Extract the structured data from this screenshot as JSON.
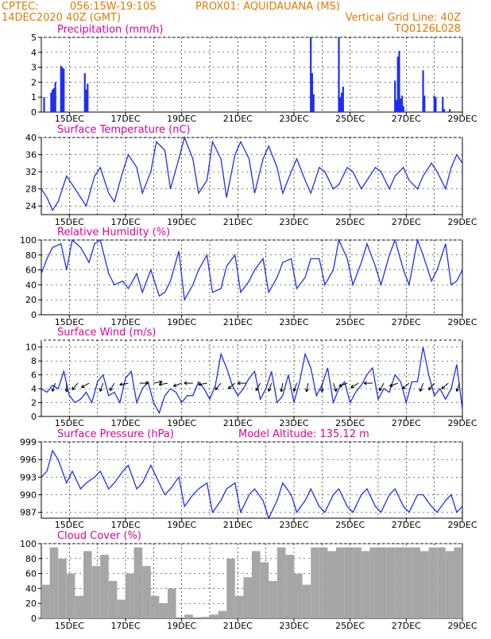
{
  "header": {
    "line1_left": "CPTEC:",
    "coords": "056:15W-19:10S",
    "location": "PROX01: AQUIDAUANA (MS)",
    "date": "14DEC2020 40Z (GMT)",
    "grid_note": "Vertical Grid Line: 40Z",
    "model": "TQ0126L028"
  },
  "colors": {
    "header": "#e07a00",
    "title": "#e0009a",
    "line": "#1f2ff0",
    "bar": "#1f2ff0",
    "cloud": "#a6a6a6",
    "arrow": "#000000"
  },
  "x_ticks": [
    "15DEC",
    "17DEC",
    "19DEC",
    "21DEC",
    "23DEC",
    "25DEC",
    "27DEC",
    "29DEC"
  ],
  "chart_data": [
    {
      "id": "precip",
      "type": "bar",
      "title": "Precipitation (mm/h)",
      "ylim": [
        0,
        5
      ],
      "yticks": [
        "0",
        "1",
        "2",
        "3",
        "4",
        "5"
      ],
      "x": [
        14.1,
        14.35,
        14.4,
        14.45,
        14.5,
        14.7,
        14.75,
        14.8,
        15.55,
        15.6,
        15.65,
        23.6,
        23.65,
        23.7,
        24.6,
        24.65,
        24.7,
        24.75,
        26.6,
        26.65,
        26.7,
        26.75,
        26.8,
        26.85,
        26.9,
        27.6,
        27.65,
        28.0,
        28.05,
        28.3,
        28.35,
        28.55
      ],
      "values": [
        1.0,
        1.3,
        1.5,
        1.6,
        2.0,
        3.1,
        3.0,
        2.9,
        2.6,
        1.5,
        1.9,
        5.0,
        2.6,
        1.2,
        5.0,
        1.0,
        1.3,
        1.7,
        2.1,
        0.8,
        3.7,
        4.1,
        0.9,
        1.1,
        0.4,
        2.8,
        1.1,
        1.1,
        1.0,
        1.0,
        0.2,
        0.2
      ]
    },
    {
      "id": "temp",
      "type": "line",
      "title": "Surface Temperature (nC)",
      "ylim": [
        22,
        40
      ],
      "yticks": [
        "24",
        "28",
        "32",
        "36",
        "40"
      ],
      "x": [
        14.0,
        14.2,
        14.4,
        14.6,
        14.9,
        15.1,
        15.4,
        15.6,
        15.9,
        16.1,
        16.4,
        16.6,
        16.9,
        17.1,
        17.4,
        17.6,
        17.9,
        18.1,
        18.4,
        18.6,
        18.9,
        19.1,
        19.4,
        19.6,
        19.9,
        20.1,
        20.4,
        20.6,
        20.9,
        21.1,
        21.4,
        21.6,
        21.9,
        22.1,
        22.4,
        22.6,
        22.9,
        23.1,
        23.4,
        23.6,
        23.9,
        24.1,
        24.4,
        24.6,
        24.9,
        25.1,
        25.4,
        25.6,
        25.9,
        26.1,
        26.4,
        26.6,
        26.9,
        27.1,
        27.4,
        27.6,
        27.9,
        28.1,
        28.4,
        28.6,
        28.8,
        29.0
      ],
      "values": [
        28,
        26,
        23,
        25,
        31,
        29,
        26,
        24,
        31,
        33,
        27,
        25,
        32,
        36,
        33,
        27,
        32,
        39,
        37,
        28,
        35,
        40,
        35,
        27,
        30,
        39,
        35,
        26,
        36,
        39,
        35,
        27,
        35,
        38,
        33,
        27,
        32,
        35,
        30,
        27,
        33,
        32,
        28,
        29,
        33,
        32,
        28,
        30,
        33,
        32,
        28,
        31,
        33,
        30,
        28,
        31,
        34,
        32,
        28,
        33,
        36,
        34
      ]
    },
    {
      "id": "rh",
      "type": "line",
      "title": "Relative Humidity (%)",
      "ylim": [
        0,
        100
      ],
      "yticks": [
        "0",
        "20",
        "40",
        "60",
        "80",
        "100"
      ],
      "x": [
        14.0,
        14.2,
        14.4,
        14.7,
        14.9,
        15.1,
        15.4,
        15.7,
        15.9,
        16.1,
        16.4,
        16.6,
        16.9,
        17.1,
        17.4,
        17.6,
        17.9,
        18.2,
        18.4,
        18.6,
        18.9,
        19.1,
        19.4,
        19.6,
        19.9,
        20.1,
        20.4,
        20.6,
        20.9,
        21.1,
        21.4,
        21.6,
        21.9,
        22.1,
        22.4,
        22.6,
        22.9,
        23.1,
        23.4,
        23.6,
        23.9,
        24.1,
        24.4,
        24.6,
        24.9,
        25.1,
        25.4,
        25.6,
        25.9,
        26.1,
        26.4,
        26.6,
        26.9,
        27.1,
        27.4,
        27.6,
        27.9,
        28.1,
        28.4,
        28.6,
        28.8,
        29.0
      ],
      "values": [
        55,
        75,
        90,
        95,
        60,
        100,
        90,
        70,
        95,
        100,
        55,
        40,
        45,
        35,
        55,
        30,
        60,
        25,
        30,
        45,
        85,
        20,
        40,
        60,
        80,
        30,
        35,
        65,
        80,
        30,
        45,
        60,
        75,
        30,
        50,
        70,
        75,
        35,
        50,
        75,
        75,
        40,
        60,
        100,
        75,
        40,
        70,
        95,
        65,
        40,
        80,
        100,
        60,
        40,
        100,
        80,
        45,
        60,
        95,
        40,
        45,
        60
      ]
    },
    {
      "id": "wind",
      "type": "line",
      "title": "Surface Wind (m/s)",
      "ylim": [
        0,
        11
      ],
      "yticks": [
        "0",
        "2",
        "4",
        "6",
        "8",
        "10"
      ],
      "x": [
        14.0,
        14.2,
        14.4,
        14.6,
        14.8,
        15.0,
        15.2,
        15.4,
        15.6,
        15.8,
        16.0,
        16.2,
        16.4,
        16.6,
        16.8,
        17.0,
        17.2,
        17.4,
        17.6,
        17.8,
        18.0,
        18.2,
        18.4,
        18.6,
        18.8,
        19.0,
        19.2,
        19.4,
        19.6,
        19.8,
        20.0,
        20.2,
        20.4,
        20.6,
        20.8,
        21.0,
        21.2,
        21.4,
        21.6,
        21.8,
        22.0,
        22.2,
        22.4,
        22.6,
        22.8,
        23.0,
        23.2,
        23.4,
        23.6,
        23.8,
        24.0,
        24.2,
        24.4,
        24.6,
        24.8,
        25.0,
        25.2,
        25.4,
        25.6,
        25.8,
        26.0,
        26.2,
        26.4,
        26.6,
        26.8,
        27.0,
        27.2,
        27.4,
        27.6,
        27.8,
        28.0,
        28.2,
        28.4,
        28.6,
        28.8,
        29.0
      ],
      "values": [
        4,
        3.5,
        4.5,
        4,
        6.5,
        3,
        2,
        2.5,
        3.5,
        2,
        5,
        6,
        3,
        3.5,
        2,
        5.5,
        6.5,
        2,
        4,
        5,
        2,
        0.5,
        3,
        4,
        3.5,
        2,
        3,
        3,
        5,
        4,
        2.5,
        4.5,
        9,
        7,
        4.5,
        3,
        4,
        5.5,
        6.5,
        2.5,
        4,
        6.5,
        2,
        3,
        6,
        2,
        5,
        9,
        7,
        3,
        4.5,
        7,
        2,
        4,
        5,
        2,
        3.5,
        4.5,
        6,
        7,
        2.5,
        4,
        3.5,
        6,
        5,
        2,
        5,
        5,
        10,
        6,
        3,
        4,
        2.5,
        4,
        7.5,
        1
      ]
    },
    {
      "id": "pressure",
      "type": "line",
      "title": "Surface Pressure (hPa)",
      "subtitle": "Model Altitude: 135.12 m",
      "ylim": [
        986,
        999
      ],
      "yticks": [
        "987",
        "990",
        "993",
        "996",
        "999"
      ],
      "x": [
        14.0,
        14.2,
        14.4,
        14.6,
        14.9,
        15.1,
        15.4,
        15.6,
        15.9,
        16.1,
        16.4,
        16.6,
        16.9,
        17.1,
        17.4,
        17.6,
        17.9,
        18.1,
        18.4,
        18.6,
        18.9,
        19.1,
        19.4,
        19.6,
        19.9,
        20.1,
        20.4,
        20.6,
        20.9,
        21.1,
        21.4,
        21.6,
        21.9,
        22.1,
        22.4,
        22.6,
        22.9,
        23.1,
        23.4,
        23.6,
        23.9,
        24.1,
        24.4,
        24.6,
        24.9,
        25.1,
        25.4,
        25.6,
        25.9,
        26.1,
        26.4,
        26.6,
        26.9,
        27.1,
        27.4,
        27.6,
        27.9,
        28.1,
        28.4,
        28.6,
        28.8,
        29.0
      ],
      "values": [
        993,
        994,
        997.5,
        996,
        992,
        994,
        991,
        992,
        993,
        994,
        991,
        992,
        994,
        995,
        991,
        992,
        995,
        993,
        990,
        991,
        993,
        988,
        990,
        991,
        992,
        987,
        989,
        991,
        992,
        987,
        990,
        991,
        989,
        986,
        989,
        992,
        990,
        987,
        989,
        991,
        988,
        987,
        990,
        991,
        988,
        987,
        990,
        991,
        988,
        987,
        990,
        991,
        988,
        987,
        990,
        990,
        988,
        987,
        989,
        990,
        987,
        988
      ]
    },
    {
      "id": "cloud",
      "type": "bar",
      "title": "Cloud Cover (%)",
      "ylim": [
        0,
        100
      ],
      "yticks": [
        "0",
        "20",
        "40",
        "60",
        "80",
        "100"
      ],
      "x": [
        14.0,
        14.3,
        14.6,
        14.9,
        15.2,
        15.5,
        15.8,
        16.1,
        16.4,
        16.7,
        17.0,
        17.3,
        17.6,
        17.9,
        18.2,
        18.5,
        18.8,
        19.1,
        19.4,
        19.7,
        20.0,
        20.3,
        20.6,
        20.9,
        21.2,
        21.5,
        21.8,
        22.1,
        22.4,
        22.7,
        23.0,
        23.3,
        23.6,
        23.9,
        24.2,
        24.5,
        24.8,
        25.1,
        25.4,
        25.7,
        26.0,
        26.3,
        26.6,
        26.9,
        27.2,
        27.5,
        27.8,
        28.1,
        28.4,
        28.7,
        29.0
      ],
      "values": [
        45,
        95,
        80,
        60,
        30,
        90,
        70,
        85,
        50,
        25,
        60,
        95,
        70,
        30,
        20,
        40,
        0,
        5,
        0,
        2,
        5,
        10,
        80,
        30,
        55,
        90,
        75,
        50,
        95,
        85,
        60,
        45,
        95,
        95,
        90,
        95,
        95,
        95,
        90,
        95,
        95,
        95,
        95,
        95,
        95,
        90,
        95,
        95,
        90,
        95,
        85
      ]
    }
  ],
  "wind_barbs": {
    "x": [
      14.5,
      14.9,
      15.3,
      15.7,
      16.2,
      16.6,
      17.1,
      17.5,
      18.0,
      18.5,
      19.0,
      19.4,
      19.9,
      20.4,
      20.9,
      21.3,
      21.8,
      22.2,
      22.6,
      23.1,
      23.5,
      24.0,
      24.4,
      24.9,
      25.3,
      25.8,
      26.2,
      26.7,
      27.1,
      27.6,
      28.0,
      28.5,
      28.9
    ],
    "direction_deg": [
      200,
      180,
      220,
      240,
      200,
      210,
      260,
      90,
      80,
      260,
      250,
      270,
      260,
      220,
      230,
      270,
      210,
      200,
      190,
      200,
      190,
      180,
      160,
      250,
      240,
      270,
      210,
      250,
      230,
      200,
      220,
      230,
      200
    ]
  }
}
